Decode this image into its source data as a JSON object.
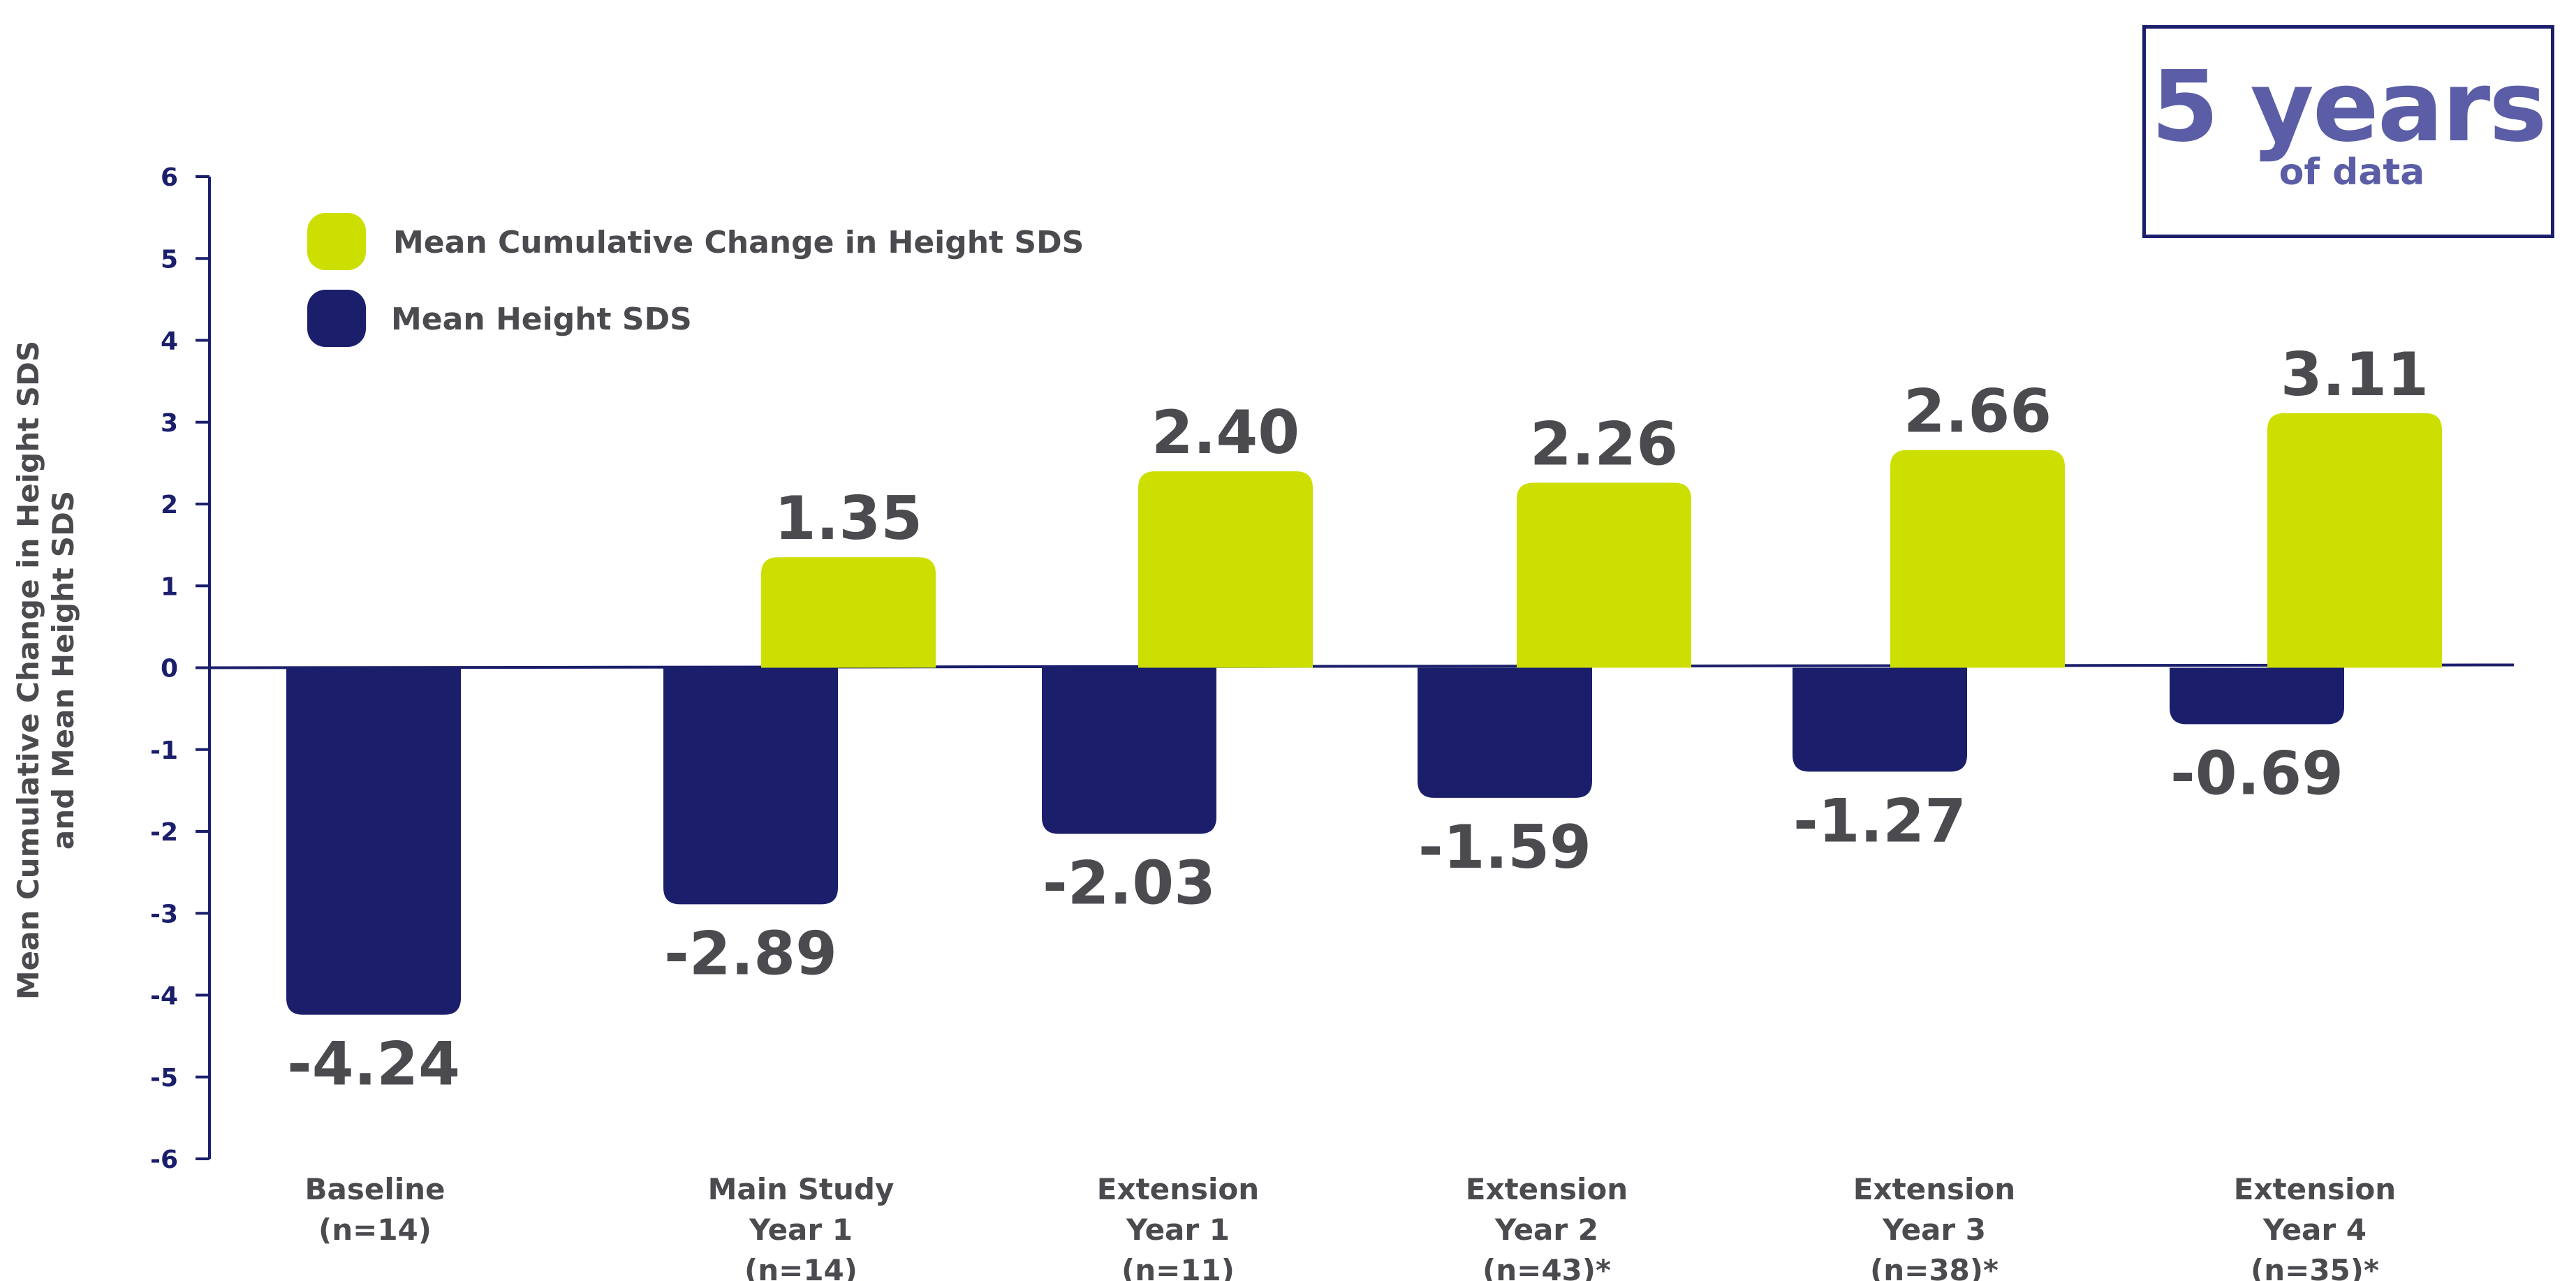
{
  "badge": {
    "big": "5 years",
    "small": "of data"
  },
  "colors": {
    "change": "#cddf00",
    "height": "#1b1f6b",
    "text": "#4a4a4f",
    "axis": "#1b1f6b",
    "badge": "#5b5ea6"
  },
  "chart_data": {
    "type": "bar",
    "ylabel": [
      "Mean Cumulative Change in Height SDS",
      "and Mean Height SDS"
    ],
    "ylim": [
      -6,
      6
    ],
    "yticks": [
      6,
      5,
      4,
      3,
      2,
      1,
      0,
      -1,
      -2,
      -3,
      -4,
      -5,
      -6
    ],
    "grid": false,
    "legend_position": "top-left",
    "categories": [
      [
        "Baseline",
        "(n=14)"
      ],
      [
        "Main Study",
        "Year 1",
        "(n=14)"
      ],
      [
        "Extension",
        "Year 1",
        "(n=11)"
      ],
      [
        "Extension",
        "Year 2",
        "(n=43)*"
      ],
      [
        "Extension",
        "Year 3",
        "(n=38)*"
      ],
      [
        "Extension",
        "Year 4",
        "(n=35)*"
      ]
    ],
    "series": [
      {
        "name": "Mean Cumulative Change in Height SDS",
        "values": [
          null,
          1.35,
          2.4,
          2.26,
          2.66,
          3.11
        ],
        "labels": [
          null,
          "1.35",
          "2.40",
          "2.26",
          "2.66",
          "3.11"
        ]
      },
      {
        "name": "Mean Height SDS",
        "values": [
          -4.24,
          -2.89,
          -2.03,
          -1.59,
          -1.27,
          -0.69
        ],
        "labels": [
          "-4.24",
          "-2.89",
          "-2.03",
          "-1.59",
          "-1.27",
          "-0.69"
        ]
      }
    ]
  }
}
